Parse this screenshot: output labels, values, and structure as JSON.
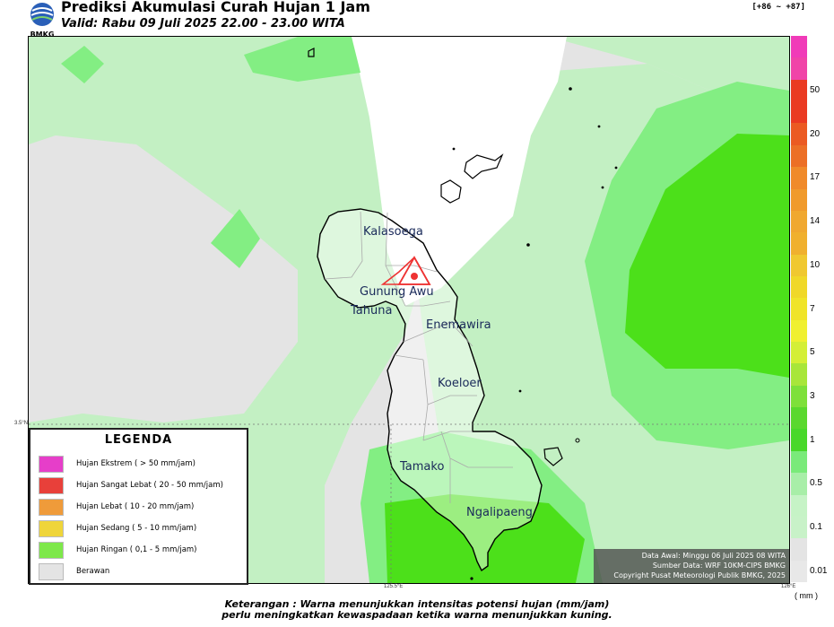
{
  "header": {
    "logo_text": "BMKG",
    "title": "Prediksi Akumulasi Curah Hujan 1 Jam",
    "subtitle": "Valid: Rabu 09 Juli 2025 22.00 - 23.00 WITA",
    "code": "[+86 ~ +87]"
  },
  "map": {
    "places": {
      "kalasoega": "Kalasoega",
      "gunung_awu": "Gunung Awu",
      "tahuna": "Tahuna",
      "enemawira": "Enemawira",
      "koeloer": "Koeloer",
      "tamako": "Tamako",
      "ngalipaeng": "Ngalipaeng"
    },
    "axis": {
      "lat_label": "3.5°N",
      "lon_label_1": "125.5°E",
      "lon_label_2": "126°E"
    },
    "colors": {
      "background": "#e4e4e4",
      "very_light": "#c3f0c3",
      "light": "#83ee83",
      "green": "#5ae22a",
      "bright": "#4ce01a"
    }
  },
  "legend": {
    "title": "LEGENDA",
    "items": [
      {
        "label": "Hujan Ekstrem ( > 50 mm/jam)",
        "color": "#e63ec9"
      },
      {
        "label": "Hujan Sangat Lebat ( 20 - 50 mm/jam)",
        "color": "#e8403a"
      },
      {
        "label": "Hujan Lebat ( 10 - 20 mm/jam)",
        "color": "#ef9b3a"
      },
      {
        "label": "Hujan Sedang ( 5 - 10 mm/jam)",
        "color": "#efd53a"
      },
      {
        "label": "Hujan Ringan ( 0,1 - 5 mm/jam)",
        "color": "#7ee84a"
      },
      {
        "label": "Berawan",
        "color": "#e4e4e4"
      }
    ]
  },
  "info_box": {
    "line1": "Data Awal: Minggu 06 Juli 2025 08 WITA",
    "line2": "Sumber Data: WRF 10KM-CIPS BMKG",
    "line3": "Copyright Pusat Meteorologi Publik BMKG, 2025"
  },
  "color_scale": {
    "cells": [
      {
        "color": "#f03bb8",
        "label": ""
      },
      {
        "color": "#f044a8",
        "label": ""
      },
      {
        "color": "#ea3a22",
        "label": "50"
      },
      {
        "color": "#ea3a22",
        "label": ""
      },
      {
        "color": "#eb5a22",
        "label": "20"
      },
      {
        "color": "#ec6f26",
        "label": ""
      },
      {
        "color": "#f08a2a",
        "label": "17"
      },
      {
        "color": "#f09a2c",
        "label": ""
      },
      {
        "color": "#f0a830",
        "label": "14"
      },
      {
        "color": "#f0b02e",
        "label": ""
      },
      {
        "color": "#f0c830",
        "label": "10"
      },
      {
        "color": "#f0d828",
        "label": ""
      },
      {
        "color": "#f0e428",
        "label": "7"
      },
      {
        "color": "#f0f030",
        "label": ""
      },
      {
        "color": "#d4ef36",
        "label": "5"
      },
      {
        "color": "#a8e63a",
        "label": ""
      },
      {
        "color": "#7ee03a",
        "label": "3"
      },
      {
        "color": "#5ad82e",
        "label": ""
      },
      {
        "color": "#48d82a",
        "label": "1"
      },
      {
        "color": "#7aea7a",
        "label": ""
      },
      {
        "color": "#a8eea8",
        "label": "0.5"
      },
      {
        "color": "#c6f3c6",
        "label": ""
      },
      {
        "color": "#c8f2c8",
        "label": "0.1"
      },
      {
        "color": "#e4e4e4",
        "label": ""
      },
      {
        "color": "#e8e8e8",
        "label": "0.01"
      }
    ],
    "unit": "( mm )"
  },
  "footer": {
    "line1": "Keterangan : Warna menunjukkan intensitas potensi hujan (mm/jam)",
    "line2": "perlu meningkatkan kewaspadaan ketika warna menunjukkan kuning."
  }
}
